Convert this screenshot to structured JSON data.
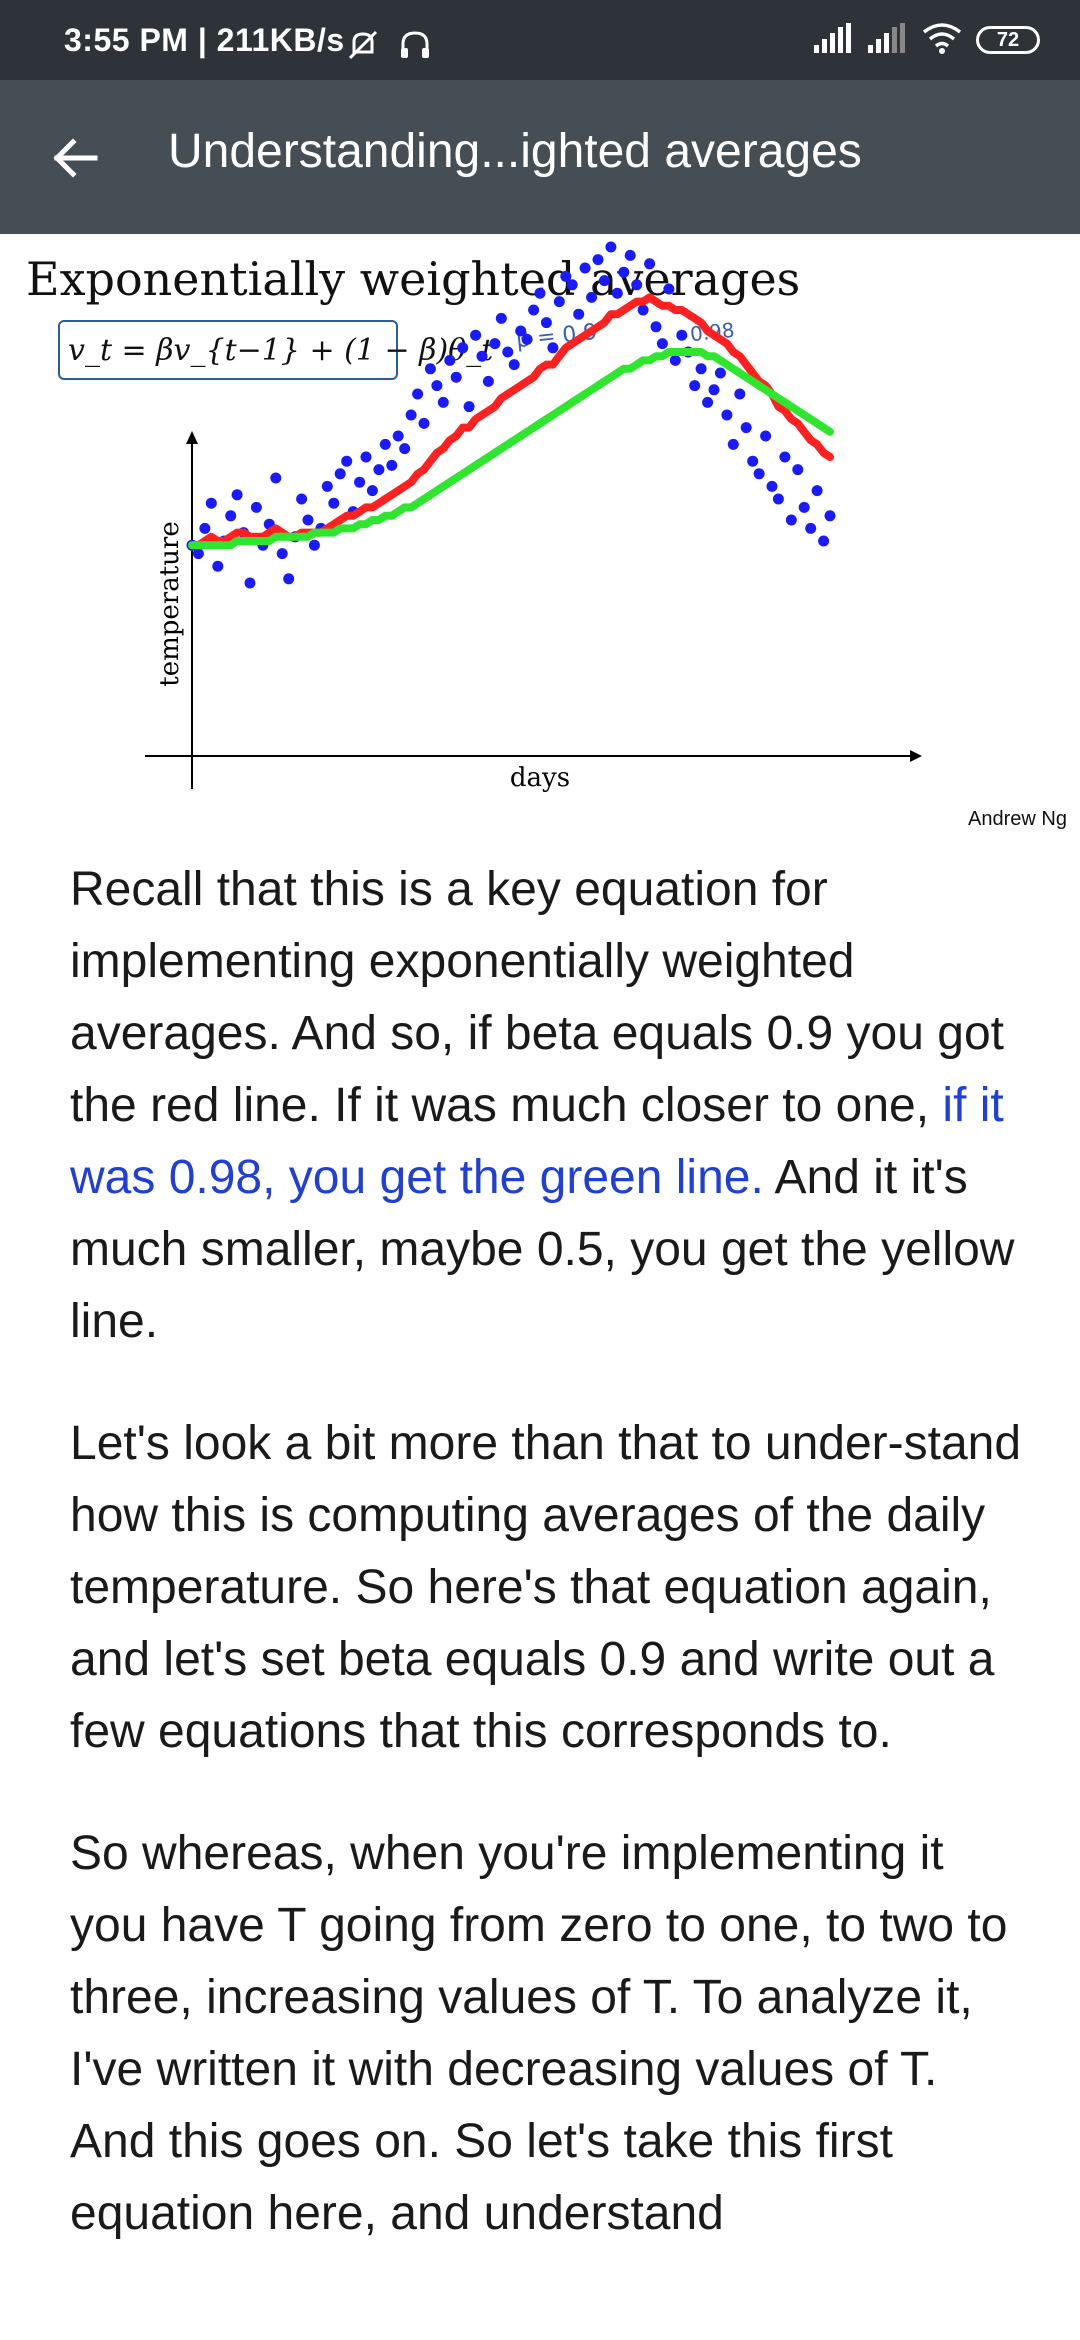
{
  "status_bar": {
    "time": "3:55 PM | 211KB/s",
    "battery": "72",
    "icons": [
      "mute-bell-icon",
      "headset-icon",
      "signal-icon",
      "signal-icon",
      "wifi-icon",
      "battery-icon"
    ]
  },
  "app_bar": {
    "title": "Understanding...ighted averages",
    "back_icon": "arrow-back-icon",
    "background": "#454d55"
  },
  "slide": {
    "heading": "Exponentially weighted averages",
    "equation": "v_t = βv_{t−1} + (1 − β)θ_t",
    "note_beta": "β = 0.9",
    "note_alt": "0.98",
    "credit": "Andrew Ng",
    "chart_data": {
      "type": "scatter",
      "xlabel": "days",
      "ylabel": "temperature",
      "x": [
        0,
        1,
        2,
        3,
        4,
        5,
        6,
        7,
        8,
        9,
        10,
        11,
        12,
        13,
        14,
        15,
        16,
        17,
        18,
        19,
        20,
        21,
        22,
        23,
        24,
        25,
        26,
        27,
        28,
        29,
        30,
        31,
        32,
        33,
        34,
        35,
        36,
        37,
        38,
        39,
        40,
        41,
        42,
        43,
        44,
        45,
        46,
        47,
        48,
        49,
        50,
        51,
        52,
        53,
        54,
        55,
        56,
        57,
        58,
        59,
        60,
        61,
        62,
        63,
        64,
        65,
        66,
        67,
        68,
        69,
        70,
        71,
        72,
        73,
        74,
        75,
        76,
        77,
        78,
        79,
        80,
        81,
        82,
        83,
        84,
        85,
        86,
        87,
        88,
        89,
        90,
        91,
        92,
        93,
        94,
        95,
        96,
        97,
        98,
        99
      ],
      "series": [
        {
          "name": "",
          "color": "#1a1aff",
          "values": [
            24,
            22,
            28,
            34,
            19,
            25,
            31,
            36,
            27,
            15,
            33,
            24,
            29,
            40,
            22,
            16,
            26,
            35,
            30,
            24,
            28,
            38,
            34,
            41,
            44,
            32,
            39,
            45,
            37,
            42,
            48,
            43,
            50,
            47,
            55,
            60,
            53,
            66,
            62,
            58,
            68,
            64,
            71,
            57,
            74,
            69,
            63,
            72,
            78,
            70,
            67,
            75,
            73,
            80,
            84,
            77,
            71,
            82,
            88,
            86,
            79,
            90,
            83,
            92,
            87,
            95,
            84,
            89,
            93,
            86,
            80,
            91,
            76,
            72,
            85,
            68,
            74,
            70,
            62,
            66,
            58,
            61,
            65,
            55,
            48,
            60,
            52,
            44,
            41,
            50,
            38,
            35,
            45,
            30,
            42,
            33,
            28,
            37,
            25,
            31
          ]
        },
        {
          "color": "#ff2020",
          "values": [
            24,
            24,
            25,
            26,
            25,
            25,
            26,
            27,
            27,
            26,
            26,
            26,
            27,
            28,
            27,
            26,
            26,
            27,
            27,
            27,
            27,
            28,
            29,
            30,
            31,
            31,
            32,
            33,
            33,
            34,
            35,
            36,
            37,
            38,
            39,
            41,
            42,
            44,
            46,
            47,
            49,
            50,
            52,
            52,
            54,
            55,
            56,
            57,
            59,
            60,
            61,
            62,
            63,
            64,
            66,
            67,
            67,
            69,
            71,
            72,
            73,
            74,
            75,
            76,
            77,
            79,
            79,
            80,
            81,
            82,
            82,
            83,
            82,
            81,
            81,
            80,
            80,
            79,
            78,
            77,
            75,
            74,
            73,
            72,
            70,
            69,
            67,
            65,
            63,
            62,
            60,
            57,
            56,
            54,
            53,
            51,
            49,
            48,
            46,
            45
          ]
        },
        {
          "color": "#2ee62e",
          "values": [
            24,
            24,
            24,
            24,
            24,
            24,
            24,
            25,
            25,
            25,
            25,
            25,
            25,
            26,
            26,
            26,
            26,
            26,
            26,
            27,
            27,
            27,
            27,
            28,
            28,
            28,
            29,
            29,
            30,
            30,
            31,
            31,
            32,
            33,
            33,
            34,
            35,
            36,
            37,
            38,
            39,
            40,
            41,
            42,
            43,
            44,
            45,
            46,
            47,
            48,
            49,
            50,
            51,
            52,
            53,
            54,
            55,
            56,
            57,
            58,
            59,
            60,
            61,
            62,
            63,
            64,
            65,
            66,
            66,
            67,
            68,
            68,
            69,
            69,
            70,
            70,
            70,
            70,
            70,
            70,
            69,
            69,
            68,
            67,
            66,
            65,
            64,
            63,
            62,
            61,
            60,
            59,
            58,
            57,
            56,
            55,
            54,
            53,
            52,
            51
          ]
        }
      ]
    }
  },
  "article": {
    "p1_before": "Recall that this is a key equation for implementing exponentially weighted averages. And so, if beta equals 0.9 you got the red line. If it was much closer to one, ",
    "p1_highlight": "if it was 0.98, you get the green line.",
    "p1_after": " And it it's much smaller, maybe 0.5, you get the yellow line.",
    "p2": "Let's look a bit more than that to under-stand how this is computing averages of the daily temperature. So here's that equation again, and let's set beta equals 0.9 and write out a few equations that this corresponds to.",
    "p3": "So whereas, when you're implementing it you have T going from zero to one, to two to three, increasing values of T.  To analyze it, I've written it with decreasing values of T.  And this goes on. So let's take this first equation here, and understand",
    "highlight_color": "#1f3fd6"
  }
}
